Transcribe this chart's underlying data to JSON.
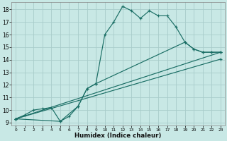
{
  "xlabel": "Humidex (Indice chaleur)",
  "bg_color": "#c8e8e5",
  "grid_color": "#a8ccca",
  "line_color": "#1a6e65",
  "xlim": [
    -0.5,
    23.5
  ],
  "ylim": [
    8.75,
    18.6
  ],
  "xticks": [
    0,
    1,
    2,
    3,
    4,
    5,
    6,
    7,
    8,
    9,
    10,
    11,
    12,
    13,
    14,
    15,
    16,
    17,
    18,
    19,
    20,
    21,
    22,
    23
  ],
  "yticks": [
    9,
    10,
    11,
    12,
    13,
    14,
    15,
    16,
    17,
    18
  ],
  "line1_x": [
    0,
    1,
    2,
    3,
    4,
    5,
    6,
    7,
    8,
    9,
    10,
    11,
    12,
    13,
    14,
    15,
    16,
    17,
    18,
    19,
    20,
    21,
    22,
    23
  ],
  "line1_y": [
    9.3,
    9.6,
    10.0,
    10.1,
    10.2,
    9.1,
    9.5,
    10.3,
    11.7,
    12.1,
    16.0,
    17.0,
    18.25,
    17.9,
    17.3,
    17.9,
    17.5,
    17.5,
    16.6,
    15.4,
    14.85,
    14.6,
    14.6,
    14.6
  ],
  "line2_x": [
    0,
    5,
    7,
    8,
    9,
    19,
    20,
    21,
    22,
    23
  ],
  "line2_y": [
    9.3,
    9.1,
    10.3,
    11.7,
    12.1,
    15.4,
    14.85,
    14.6,
    14.6,
    14.6
  ],
  "line3_x": [
    0,
    23
  ],
  "line3_y": [
    9.3,
    14.6
  ],
  "line4_x": [
    0,
    23
  ],
  "line4_y": [
    9.3,
    14.05
  ]
}
